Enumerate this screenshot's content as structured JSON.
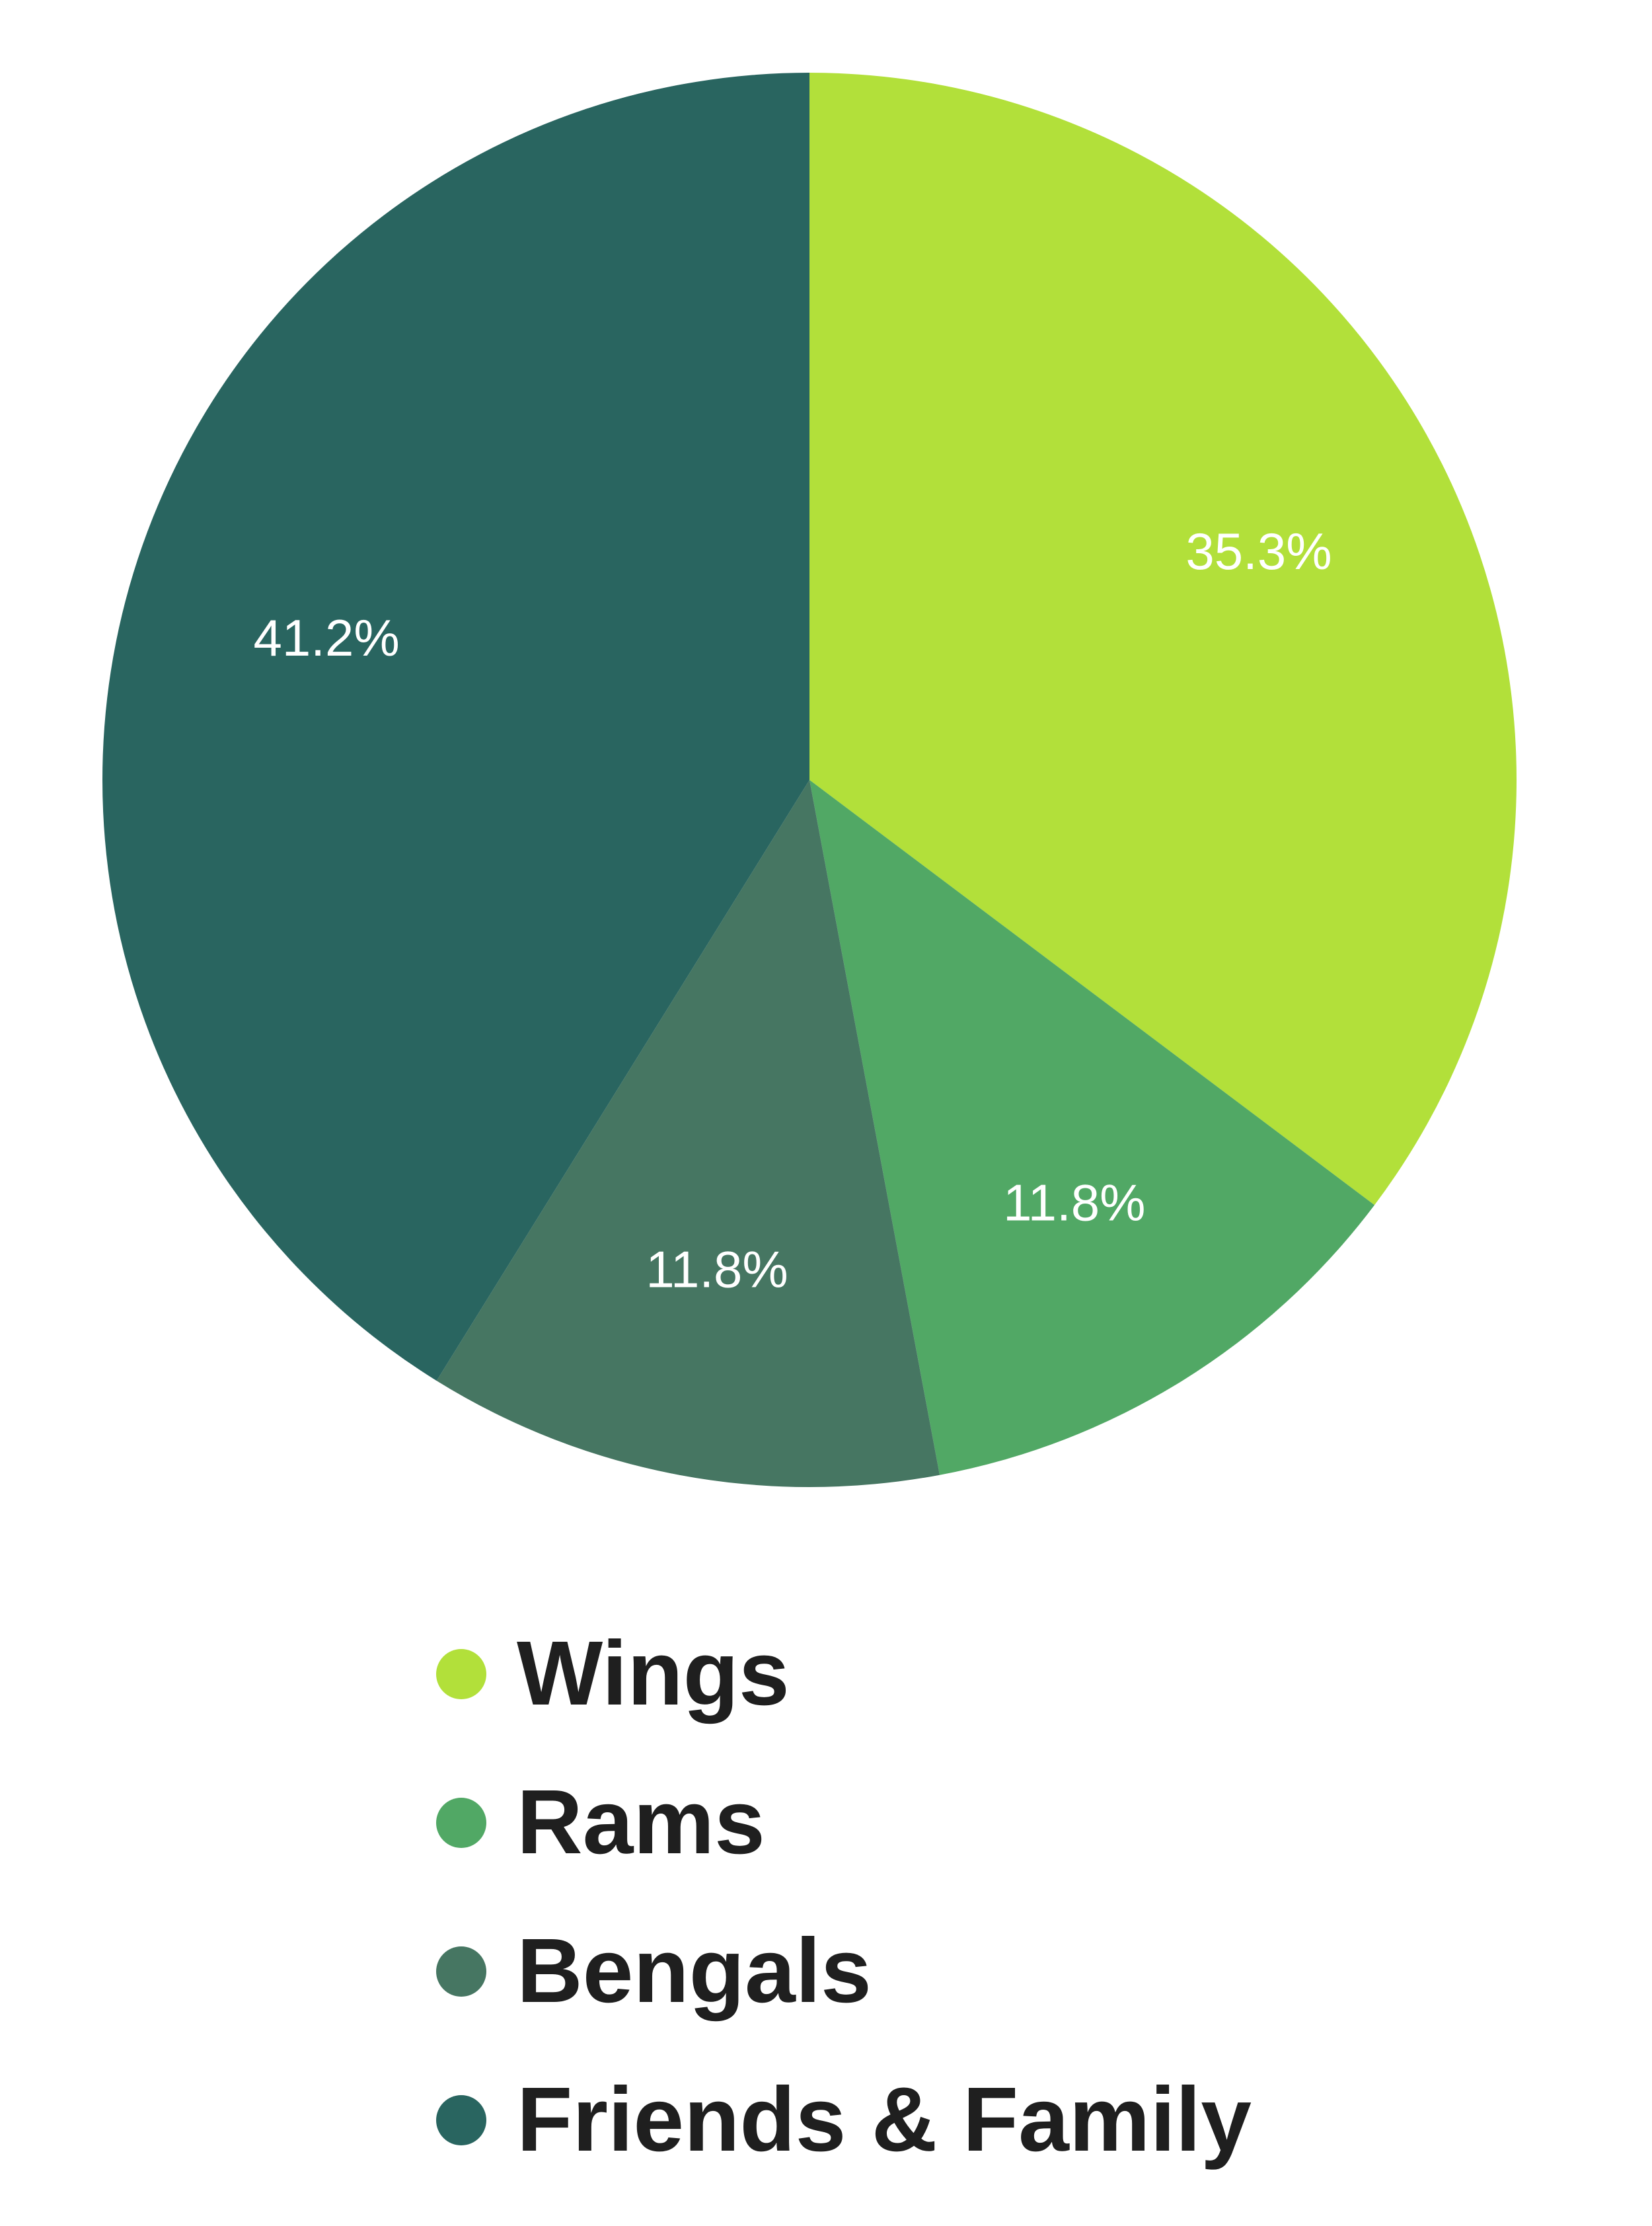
{
  "chart_data": {
    "type": "pie",
    "categories": [
      "Wings",
      "Rams",
      "Bengals",
      "Friends & Family"
    ],
    "values": [
      35.3,
      11.8,
      11.8,
      41.2
    ],
    "value_labels": [
      "35.3%",
      "11.8%",
      "11.8%",
      "41.2%"
    ],
    "colors": [
      "#b2e03a",
      "#51a865",
      "#467662",
      "#296560"
    ],
    "title": "",
    "legend": "bottom",
    "start_angle": "top, clockwise"
  },
  "legend": {
    "items": [
      {
        "label": "Wings",
        "color": "#b2e03a"
      },
      {
        "label": "Rams",
        "color": "#51a865"
      },
      {
        "label": "Bengals",
        "color": "#467662"
      },
      {
        "label": "Friends & Family",
        "color": "#296560"
      }
    ]
  }
}
